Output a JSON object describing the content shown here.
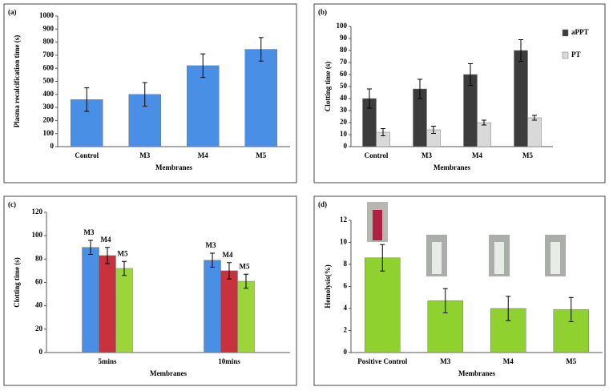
{
  "chart_data": [
    {
      "type": "bar",
      "label": "(a)",
      "ylabel": "Plasma recalcification time (s)",
      "xlabel": "Membranes",
      "categories": [
        "Control",
        "M3",
        "M4",
        "M5"
      ],
      "values": [
        360,
        400,
        620,
        745
      ],
      "errors": [
        90,
        90,
        90,
        90
      ],
      "color": "#4a8fe6",
      "ylim": [
        0,
        1000
      ],
      "yticks": [
        0,
        100,
        200,
        300,
        400,
        500,
        600,
        700,
        800,
        900,
        1000
      ]
    },
    {
      "type": "bar",
      "label": "(b)",
      "ylabel": "Clotting time (s)",
      "xlabel": "Membranes",
      "categories": [
        "Control",
        "M3",
        "M4",
        "M5"
      ],
      "series": [
        {
          "name": "aPPT",
          "color": "#3c3c3c",
          "values": [
            40,
            48,
            60,
            80
          ],
          "errors": [
            8,
            8,
            9,
            9
          ]
        },
        {
          "name": "PT",
          "color": "#d9d9d9",
          "values": [
            12,
            14,
            20,
            24
          ],
          "errors": [
            3,
            3,
            2,
            2
          ]
        }
      ],
      "legend": "right",
      "ylim": [
        0,
        100
      ],
      "yticks": [
        0,
        10,
        20,
        30,
        40,
        50,
        60,
        70,
        80,
        90,
        100
      ]
    },
    {
      "type": "bar",
      "label": "(c)",
      "ylabel": "Clotting time (s)",
      "xlabel": "Membranes",
      "categories": [
        "5mins",
        "10mins"
      ],
      "series": [
        {
          "name": "M3",
          "color": "#4a8fe6",
          "values": [
            90,
            79
          ],
          "errors": [
            6,
            6
          ]
        },
        {
          "name": "M4",
          "color": "#c8323c",
          "values": [
            83,
            70
          ],
          "errors": [
            7,
            7
          ]
        },
        {
          "name": "M5",
          "color": "#9ad63a",
          "values": [
            72,
            61
          ],
          "errors": [
            6,
            6
          ]
        }
      ],
      "data_labels": true,
      "ylim": [
        0,
        120
      ],
      "yticks": [
        0,
        20,
        40,
        60,
        80,
        100,
        120
      ]
    },
    {
      "type": "bar",
      "label": "(d)",
      "ylabel": "Hemolysis(%)",
      "xlabel": "Membranes",
      "categories": [
        "Positive Control",
        "M3",
        "M4",
        "M5"
      ],
      "values": [
        8.6,
        4.7,
        4.0,
        3.9
      ],
      "errors": [
        1.2,
        1.1,
        1.1,
        1.1
      ],
      "color": "#8fd12f",
      "ylim": [
        0,
        12
      ],
      "yticks": [
        0,
        2,
        4,
        6,
        8,
        10,
        12
      ]
    }
  ]
}
